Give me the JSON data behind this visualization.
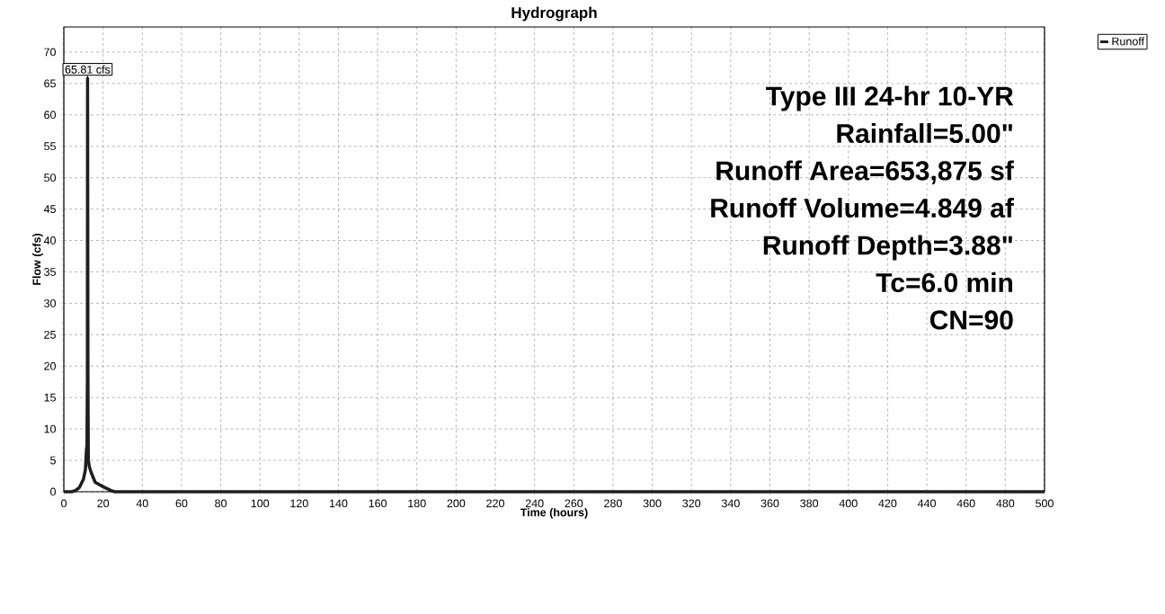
{
  "chart_data": {
    "type": "line",
    "title": "Hydrograph",
    "xlabel": "Time  (hours)",
    "ylabel": "Flow  (cfs)",
    "x": [
      0,
      4,
      6,
      8,
      10,
      11,
      11.5,
      11.8,
      12,
      12.1,
      12.3,
      12.5,
      13,
      14,
      16,
      20,
      24,
      26,
      500
    ],
    "series": [
      {
        "name": "Runoff",
        "color": "#1e1e1e",
        "values": [
          0,
          0,
          0.2,
          0.7,
          2,
          3.5,
          6.5,
          7.5,
          18,
          65.81,
          18,
          5,
          4,
          3,
          1.5,
          0.8,
          0.2,
          0,
          0
        ]
      }
    ],
    "xlim": [
      0,
      500
    ],
    "ylim": [
      0,
      74
    ],
    "xticks": [
      0,
      20,
      40,
      60,
      80,
      100,
      120,
      140,
      160,
      180,
      200,
      220,
      240,
      260,
      280,
      300,
      320,
      340,
      360,
      380,
      400,
      420,
      440,
      460,
      480,
      500
    ],
    "yticks": [
      0,
      5,
      10,
      15,
      20,
      25,
      30,
      35,
      40,
      45,
      50,
      55,
      60,
      65,
      70
    ],
    "grid": true,
    "legend": "top right",
    "marker": "none",
    "line_style": "solid",
    "annotations": [
      {
        "text": "65.81 cfs",
        "x": 12.1,
        "y": 65.81
      },
      "Type III 24-hr 10-YR",
      "Rainfall=5.00\"",
      "Runoff Area=653,875 sf",
      "Runoff Volume=4.849 af",
      "Runoff Depth=3.88\"",
      "Tc=6.0 min",
      "CN=90"
    ]
  }
}
